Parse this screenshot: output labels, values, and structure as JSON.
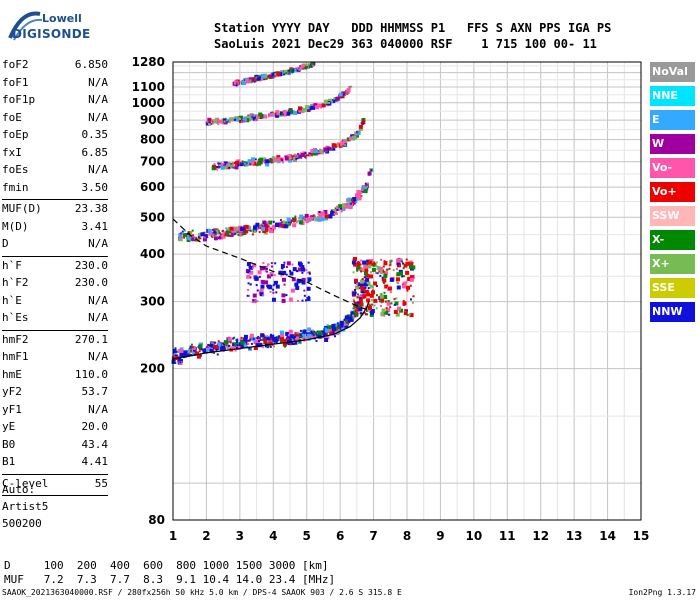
{
  "logo": {
    "line1": "Lowell",
    "line2": "DIGISONDE"
  },
  "header": {
    "line1": "Station YYYY DAY   DDD HHMMSS P1   FFS S AXN PPS IGA PS",
    "line2": "SaoLuis 2021 Dec29 363 040000 RSF    1 715 100 00- 11"
  },
  "params": [
    [
      {
        "name": "foF2",
        "value": "6.850"
      },
      {
        "name": "foF1",
        "value": "N/A"
      },
      {
        "name": "foF1p",
        "value": "N/A"
      },
      {
        "name": "foE",
        "value": "N/A"
      },
      {
        "name": "foEp",
        "value": "0.35"
      },
      {
        "name": "fxI",
        "value": "6.85"
      },
      {
        "name": "foEs",
        "value": "N/A"
      },
      {
        "name": "fmin",
        "value": "3.50"
      }
    ],
    [
      {
        "name": "MUF(D)",
        "value": "23.38"
      },
      {
        "name": "M(D)",
        "value": "3.41"
      },
      {
        "name": "D",
        "value": "N/A"
      }
    ],
    [
      {
        "name": "h`F",
        "value": "230.0"
      },
      {
        "name": "h`F2",
        "value": "230.0"
      },
      {
        "name": "h`E",
        "value": "N/A"
      },
      {
        "name": "h`Es",
        "value": "N/A"
      }
    ],
    [
      {
        "name": "hmF2",
        "value": "270.1"
      },
      {
        "name": "hmF1",
        "value": "N/A"
      },
      {
        "name": "hmE",
        "value": "110.0"
      },
      {
        "name": "yF2",
        "value": "53.7"
      },
      {
        "name": "yF1",
        "value": "N/A"
      },
      {
        "name": "yE",
        "value": "20.0"
      },
      {
        "name": "B0",
        "value": "43.4"
      },
      {
        "name": "B1",
        "value": "4.41"
      }
    ],
    [
      {
        "name": "C-level",
        "value": "55"
      }
    ]
  ],
  "auto": {
    "line1": "Auto:",
    "line2": "Artist5",
    "line3": "500200"
  },
  "legend": [
    {
      "label": "NoVal",
      "color": "#999999"
    },
    {
      "label": "NNE",
      "color": "#00e5ff"
    },
    {
      "label": "E",
      "color": "#33aaff"
    },
    {
      "label": "W",
      "color": "#a000a0"
    },
    {
      "label": "Vo-",
      "color": "#ff55aa"
    },
    {
      "label": "Vo+",
      "color": "#ee0000"
    },
    {
      "label": "SSW",
      "color": "#ffb6b6"
    },
    {
      "label": "X-",
      "color": "#008800"
    },
    {
      "label": "X+",
      "color": "#77bb55"
    },
    {
      "label": "SSE",
      "color": "#cccc00"
    },
    {
      "label": "NNW",
      "color": "#1010dd"
    }
  ],
  "muf_table": {
    "d_line": "D     100  200  400  600  800 1000 1500 3000 [km]",
    "muf_line": "MUF   7.2  7.3  7.7  8.3  9.1 10.4 14.0 23.4 [MHz]"
  },
  "footer": "SAAOK_2021363040000.RSF / 280fx256h 50 kHz 5.0 km / DPS-4 SAAOK 903 / 2.6 S 315.8 E",
  "footer_version": "Ion2Png 1.3.17",
  "chart_data": {
    "type": "scatter",
    "xlim": [
      1,
      15
    ],
    "ylim": [
      80,
      1280
    ],
    "x_ticks": [
      1,
      2,
      3,
      4,
      5,
      6,
      7,
      8,
      9,
      10,
      11,
      12,
      13,
      14,
      15
    ],
    "y_ticks": [
      80,
      200,
      300,
      400,
      500,
      600,
      700,
      800,
      900,
      1000,
      1100,
      1280
    ],
    "grid": true,
    "traces": [
      {
        "name": "F-trace 1",
        "points": [
          [
            1.0,
            215
          ],
          [
            1.5,
            220
          ],
          [
            2.0,
            225
          ],
          [
            2.5,
            230
          ],
          [
            3.0,
            232
          ],
          [
            3.5,
            235
          ],
          [
            4.0,
            238
          ],
          [
            4.5,
            240
          ],
          [
            5.0,
            243
          ],
          [
            5.5,
            248
          ],
          [
            6.0,
            258
          ],
          [
            6.3,
            270
          ],
          [
            6.6,
            300
          ],
          [
            6.8,
            345
          ],
          [
            6.85,
            400
          ]
        ]
      },
      {
        "name": "F-trace 2",
        "points": [
          [
            1.2,
            445
          ],
          [
            1.8,
            448
          ],
          [
            2.5,
            455
          ],
          [
            3.0,
            462
          ],
          [
            3.5,
            468
          ],
          [
            4.0,
            475
          ],
          [
            4.5,
            485
          ],
          [
            5.0,
            495
          ],
          [
            5.5,
            505
          ],
          [
            6.0,
            525
          ],
          [
            6.4,
            550
          ],
          [
            6.8,
            600
          ],
          [
            6.95,
            680
          ]
        ]
      },
      {
        "name": "F-trace 3",
        "points": [
          [
            2.2,
            680
          ],
          [
            3.0,
            690
          ],
          [
            3.5,
            698
          ],
          [
            4.0,
            705
          ],
          [
            4.5,
            718
          ],
          [
            5.0,
            730
          ],
          [
            5.5,
            748
          ],
          [
            6.0,
            775
          ],
          [
            6.4,
            810
          ],
          [
            6.6,
            850
          ],
          [
            6.7,
            900
          ]
        ]
      },
      {
        "name": "F-trace 4",
        "points": [
          [
            2.0,
            890
          ],
          [
            2.5,
            895
          ],
          [
            3.0,
            905
          ],
          [
            3.5,
            915
          ],
          [
            4.0,
            930
          ],
          [
            4.5,
            945
          ],
          [
            5.0,
            965
          ],
          [
            5.5,
            990
          ],
          [
            5.9,
            1020
          ],
          [
            6.2,
            1060
          ],
          [
            6.35,
            1110
          ]
        ]
      },
      {
        "name": "F-trace 5",
        "points": [
          [
            2.8,
            1120
          ],
          [
            3.2,
            1140
          ],
          [
            3.6,
            1160
          ],
          [
            4.0,
            1180
          ],
          [
            4.4,
            1200
          ],
          [
            4.8,
            1230
          ],
          [
            5.2,
            1260
          ]
        ]
      }
    ],
    "es_cluster": {
      "x_range": [
        3.2,
        5.1
      ],
      "y_range": [
        300,
        380
      ]
    },
    "spread_cluster": {
      "x_range": [
        6.4,
        8.2
      ],
      "y_range": [
        275,
        390
      ]
    },
    "profile_curve": {
      "points": [
        [
          1.0,
          212
        ],
        [
          2.0,
          220
        ],
        [
          3.0,
          226
        ],
        [
          4.0,
          232
        ],
        [
          5.0,
          238
        ],
        [
          5.8,
          246
        ],
        [
          6.3,
          258
        ],
        [
          6.6,
          272
        ],
        [
          6.8,
          290
        ],
        [
          6.85,
          300
        ]
      ]
    },
    "dashed_curve": {
      "points": [
        [
          1.0,
          495
        ],
        [
          1.5,
          450
        ],
        [
          2.0,
          420
        ],
        [
          3.0,
          390
        ],
        [
          4.0,
          360
        ],
        [
          5.0,
          338
        ],
        [
          5.8,
          312
        ],
        [
          6.3,
          298
        ],
        [
          6.6,
          290
        ],
        [
          6.85,
          285
        ]
      ]
    }
  }
}
